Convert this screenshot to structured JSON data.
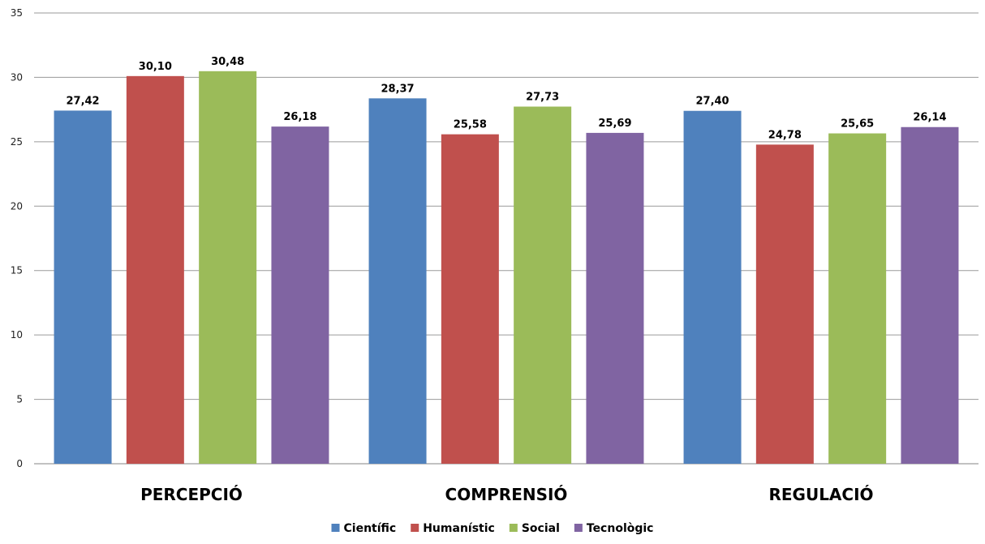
{
  "chart_data": {
    "type": "bar",
    "categories": [
      "PERCEPCIÓ",
      "COMPRENSIÓ",
      "REGULACIÓ"
    ],
    "series": [
      {
        "name": "Científic",
        "color": "#4F81BD",
        "values": [
          27.42,
          28.37,
          27.4
        ],
        "labels": [
          "27,42",
          "28,37",
          "27,40"
        ]
      },
      {
        "name": "Humanístic",
        "color": "#C0504D",
        "values": [
          30.1,
          25.58,
          24.78
        ],
        "labels": [
          "30,10",
          "25,58",
          "24,78"
        ]
      },
      {
        "name": "Social",
        "color": "#9BBB59",
        "values": [
          30.48,
          27.73,
          25.65
        ],
        "labels": [
          "30,48",
          "27,73",
          "25,65"
        ]
      },
      {
        "name": "Tecnològic",
        "color": "#8064A2",
        "values": [
          26.18,
          25.69,
          26.14
        ],
        "labels": [
          "26,18",
          "25,69",
          "26,14"
        ]
      }
    ],
    "yticks": [
      "0",
      "5",
      "10",
      "15",
      "20",
      "25",
      "30",
      "35"
    ],
    "ylim": [
      0,
      35
    ],
    "grid": true,
    "legend_position": "bottom",
    "title": "",
    "xlabel": "",
    "ylabel": ""
  }
}
